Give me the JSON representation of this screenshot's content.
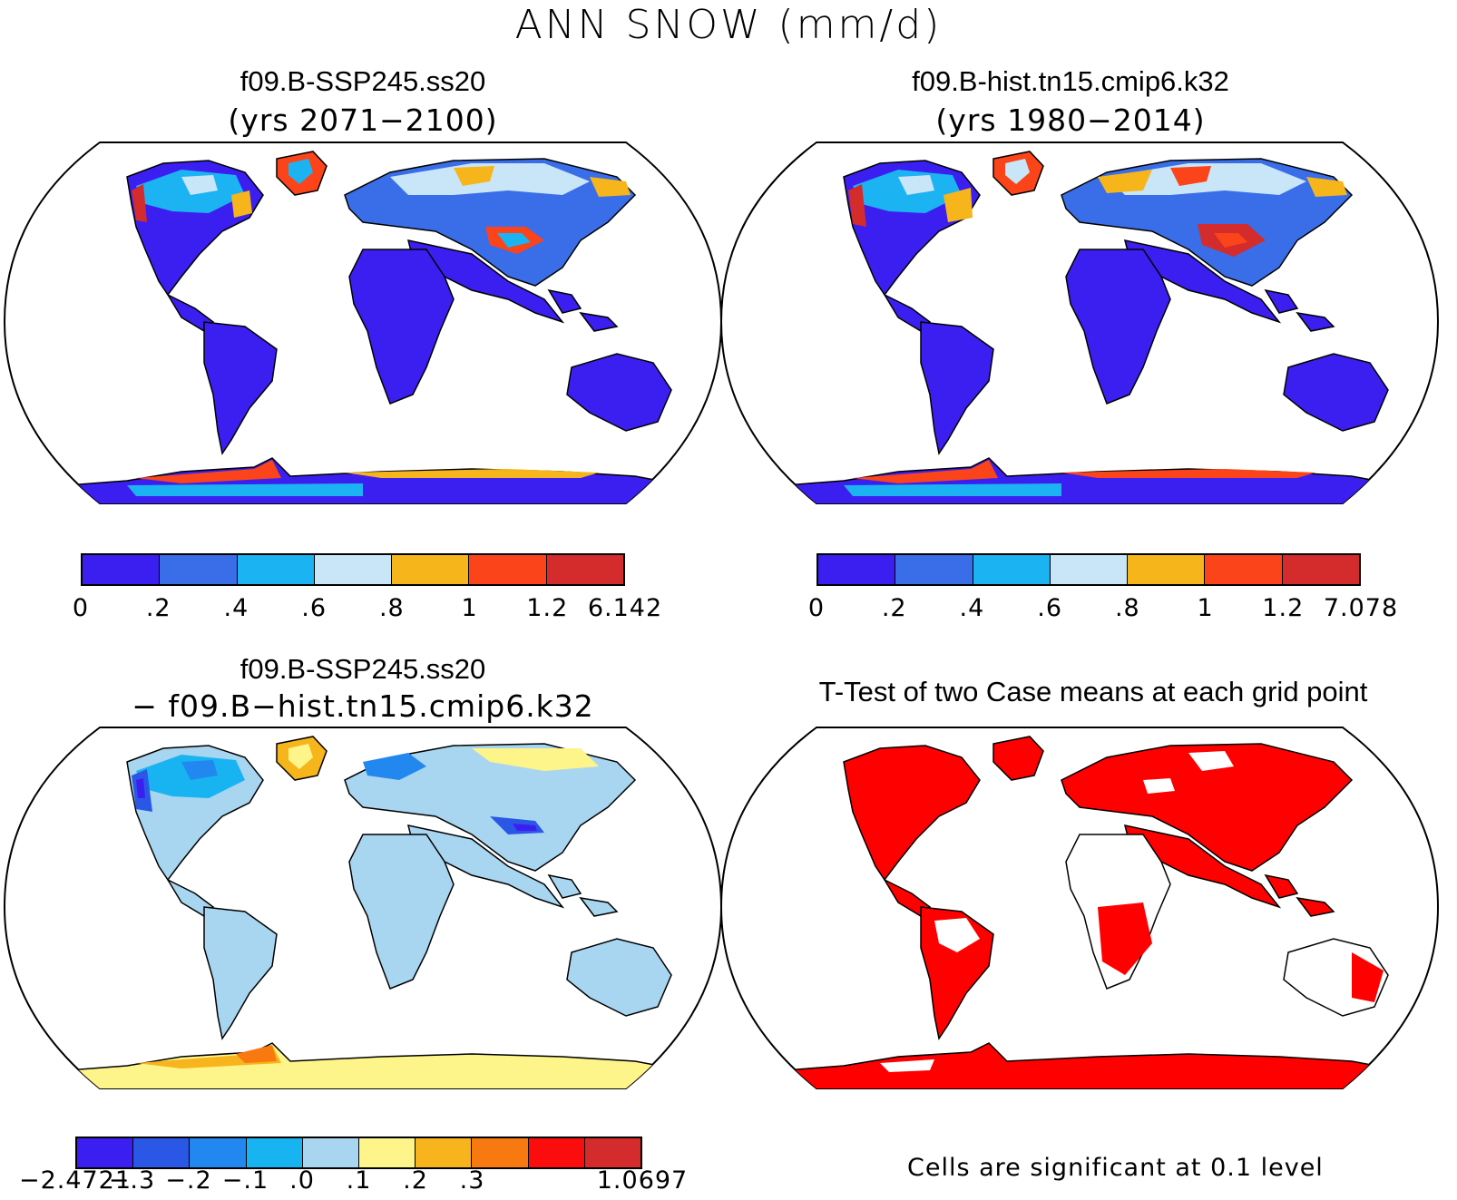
{
  "title": "ANN SNOW (mm/d)",
  "panels": [
    {
      "title": "f09.B-SSP245.ss20",
      "subtitle": "(yrs 2071−2100)",
      "colorbar": {
        "colors": [
          "#3b1ff0",
          "#3a6ee8",
          "#1cb3f3",
          "#c8e6f7",
          "#f6b51b",
          "#fb4419",
          "#d42c2c"
        ],
        "labels": [
          "0",
          ".2",
          ".4",
          ".6",
          ".8",
          "1",
          "1.2",
          "6.142"
        ]
      }
    },
    {
      "title": "f09.B-hist.tn15.cmip6.k32",
      "subtitle": "(yrs 1980−2014)",
      "colorbar": {
        "colors": [
          "#3b1ff0",
          "#3a6ee8",
          "#1cb3f3",
          "#c8e6f7",
          "#f6b51b",
          "#fb4419",
          "#d42c2c"
        ],
        "labels": [
          "0",
          ".2",
          ".4",
          ".6",
          ".8",
          "1",
          "1.2",
          "7.078"
        ]
      }
    },
    {
      "title": "f09.B-SSP245.ss20",
      "subtitle": "− f09.B−hist.tn15.cmip6.k32",
      "colorbar": {
        "colors": [
          "#3b1ff0",
          "#2b57e6",
          "#2288f0",
          "#18b4f2",
          "#a8d5f0",
          "#fdf48a",
          "#f7b41c",
          "#f7790f",
          "#fb0d0d",
          "#d42c2c"
        ],
        "labels": [
          "−2.4721",
          "−.3",
          "−.2",
          "−.1",
          ".0",
          ".1",
          ".2",
          ".3",
          "",
          "1.0697"
        ]
      }
    },
    {
      "title": "T-Test of two Case means at each grid point",
      "footnote": "Cells are significant at 0.1 level"
    }
  ],
  "map_colors": {
    "ocean": "#ffffff",
    "snow_low": "#3b1ff0",
    "diff_base": "#a8d5f0",
    "ttest_sig": "#ff0000"
  }
}
